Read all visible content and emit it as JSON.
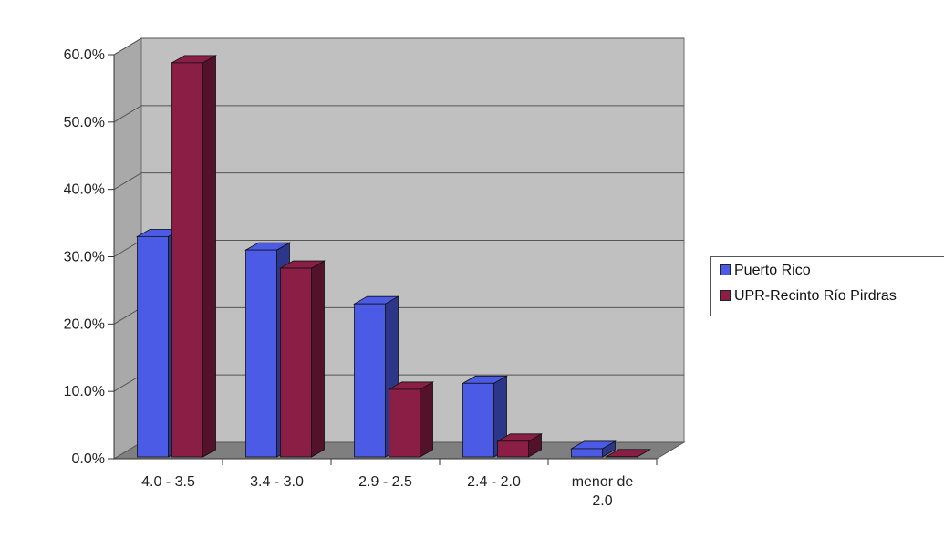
{
  "chart_data": {
    "type": "bar",
    "categories": [
      "4.0 - 3.5",
      "3.4 - 3.0",
      "2.9 - 2.5",
      "2.4 - 2.0",
      "menor de 2.0"
    ],
    "category_label_lines": [
      [
        "4.0 - 3.5"
      ],
      [
        "3.4 - 3.0"
      ],
      [
        "2.9 - 2.5"
      ],
      [
        "2.4 - 2.0"
      ],
      [
        "menor de",
        "2.0"
      ]
    ],
    "series": [
      {
        "name": "Puerto Rico",
        "values": [
          33.0,
          31.0,
          23.0,
          11.2,
          1.5
        ],
        "color": "#4b5be6"
      },
      {
        "name": "UPR-Recinto Río Pirdras",
        "values": [
          58.8,
          28.3,
          10.3,
          2.6,
          0.3
        ],
        "color": "#8b1e45"
      }
    ],
    "ylim": [
      0,
      60
    ],
    "y_ticks": [
      "0.0%",
      "10.0%",
      "20.0%",
      "30.0%",
      "40.0%",
      "50.0%",
      "60.0%"
    ],
    "title": "",
    "xlabel": "",
    "ylabel": "",
    "grid": true,
    "three_d": true,
    "wall_color": "#c0c0c0",
    "legend_position": "right"
  }
}
